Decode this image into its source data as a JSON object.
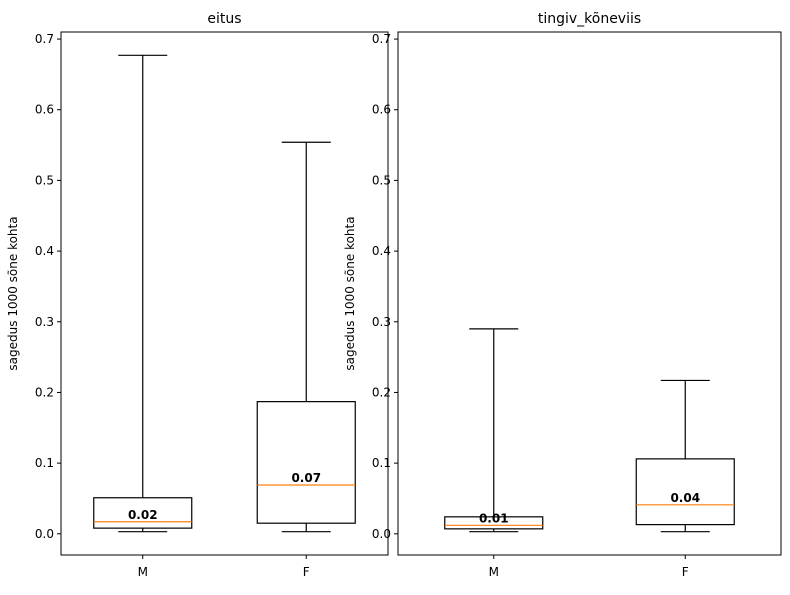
{
  "chart_data": [
    {
      "type": "box",
      "title": "eitus",
      "ylabel": "sagedus 1000 sõne kohta",
      "xlabel": "",
      "categories": [
        "M",
        "F"
      ],
      "ylim": [
        -0.03,
        0.71
      ],
      "yticks": [
        "0.0",
        "0.1",
        "0.2",
        "0.3",
        "0.4",
        "0.5",
        "0.6",
        "0.7"
      ],
      "grid": false,
      "boxes": [
        {
          "label": "M",
          "whisker_low": 0.003,
          "q1": 0.008,
          "median": 0.017,
          "q3": 0.051,
          "whisker_high": 0.677,
          "median_label": "0.02"
        },
        {
          "label": "F",
          "whisker_low": 0.003,
          "q1": 0.015,
          "median": 0.069,
          "q3": 0.187,
          "whisker_high": 0.554,
          "median_label": "0.07"
        }
      ],
      "colors": {
        "box": "#000000",
        "median": "#ff7f0e"
      }
    },
    {
      "type": "box",
      "title": "tingiv_kõneviis",
      "ylabel": "sagedus 1000 sõne kohta",
      "xlabel": "",
      "categories": [
        "M",
        "F"
      ],
      "ylim": [
        -0.03,
        0.71
      ],
      "yticks": [
        "0.0",
        "0.1",
        "0.2",
        "0.3",
        "0.4",
        "0.5",
        "0.6",
        "0.7"
      ],
      "grid": false,
      "boxes": [
        {
          "label": "M",
          "whisker_low": 0.003,
          "q1": 0.007,
          "median": 0.012,
          "q3": 0.024,
          "whisker_high": 0.29,
          "median_label": "0.01"
        },
        {
          "label": "F",
          "whisker_low": 0.003,
          "q1": 0.013,
          "median": 0.041,
          "q3": 0.106,
          "whisker_high": 0.217,
          "median_label": "0.04"
        }
      ],
      "colors": {
        "box": "#000000",
        "median": "#ff7f0e"
      }
    }
  ]
}
